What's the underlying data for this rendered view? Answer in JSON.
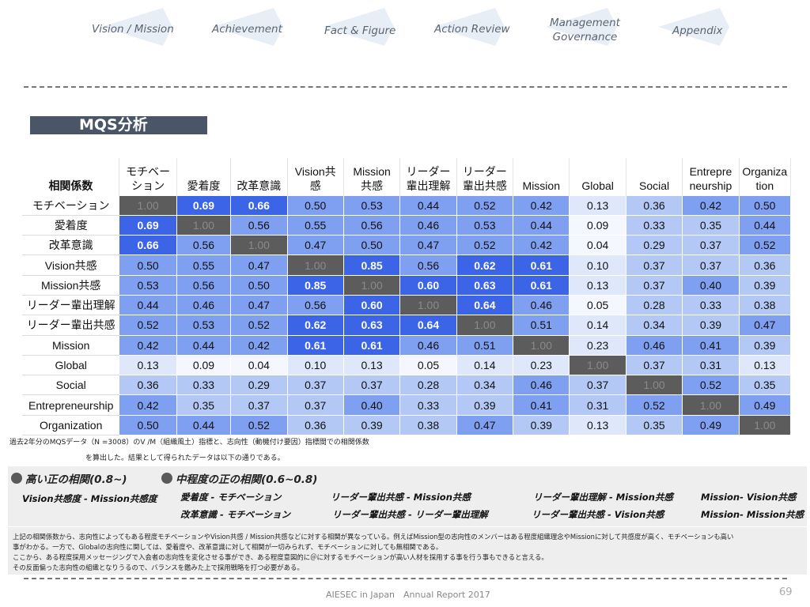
{
  "nav": {
    "items": [
      {
        "label": "Vision / Mission"
      },
      {
        "label": "Achievement"
      },
      {
        "label": "Fact & Figure"
      },
      {
        "label": "Action Review"
      },
      {
        "label": "Management\nGovernance"
      },
      {
        "label": "Appendix"
      }
    ],
    "arrow_color": "#e8eef6"
  },
  "title": "MQS分析",
  "matrix": {
    "corner": "相関係数",
    "columns": [
      "モチベー\nション",
      "愛着度",
      "改革意識",
      "Vision共\n感",
      "Mission\n共感",
      "リーダー\n輩出理解",
      "リーダー\n輩出共感",
      "Mission",
      "Global",
      "Social",
      "Entrepre\nneurship",
      "Organiza\ntion"
    ],
    "rows": [
      {
        "label": "モチベーション",
        "values": [
          "1.00",
          "0.69",
          "0.66",
          "0.50",
          "0.53",
          "0.44",
          "0.52",
          "0.42",
          "0.13",
          "0.36",
          "0.42",
          "0.50"
        ]
      },
      {
        "label": "愛着度",
        "values": [
          "0.69",
          "1.00",
          "0.56",
          "0.55",
          "0.56",
          "0.46",
          "0.53",
          "0.44",
          "0.09",
          "0.33",
          "0.35",
          "0.44"
        ]
      },
      {
        "label": "改革意識",
        "values": [
          "0.66",
          "0.56",
          "1.00",
          "0.47",
          "0.50",
          "0.47",
          "0.52",
          "0.42",
          "0.04",
          "0.29",
          "0.37",
          "0.52"
        ]
      },
      {
        "label": "Vision共感",
        "values": [
          "0.50",
          "0.55",
          "0.47",
          "1.00",
          "0.85",
          "0.56",
          "0.62",
          "0.61",
          "0.10",
          "0.37",
          "0.37",
          "0.36"
        ]
      },
      {
        "label": "Mission共感",
        "values": [
          "0.53",
          "0.56",
          "0.50",
          "0.85",
          "1.00",
          "0.60",
          "0.63",
          "0.61",
          "0.13",
          "0.37",
          "0.40",
          "0.39"
        ]
      },
      {
        "label": "リーダー輩出理解",
        "values": [
          "0.44",
          "0.46",
          "0.47",
          "0.56",
          "0.60",
          "1.00",
          "0.64",
          "0.46",
          "0.05",
          "0.28",
          "0.33",
          "0.38"
        ]
      },
      {
        "label": "リーダー輩出共感",
        "values": [
          "0.52",
          "0.53",
          "0.52",
          "0.62",
          "0.63",
          "0.64",
          "1.00",
          "0.51",
          "0.14",
          "0.34",
          "0.39",
          "0.47"
        ]
      },
      {
        "label": "Mission",
        "values": [
          "0.42",
          "0.44",
          "0.42",
          "0.61",
          "0.61",
          "0.46",
          "0.51",
          "1.00",
          "0.23",
          "0.46",
          "0.41",
          "0.39"
        ]
      },
      {
        "label": "Global",
        "values": [
          "0.13",
          "0.09",
          "0.04",
          "0.10",
          "0.13",
          "0.05",
          "0.14",
          "0.23",
          "1.00",
          "0.37",
          "0.31",
          "0.13"
        ]
      },
      {
        "label": "Social",
        "values": [
          "0.36",
          "0.33",
          "0.29",
          "0.37",
          "0.37",
          "0.28",
          "0.34",
          "0.46",
          "0.37",
          "1.00",
          "0.52",
          "0.35"
        ]
      },
      {
        "label": "Entrepreneurship",
        "values": [
          "0.42",
          "0.35",
          "0.37",
          "0.37",
          "0.40",
          "0.33",
          "0.39",
          "0.41",
          "0.31",
          "0.52",
          "1.00",
          "0.49"
        ]
      },
      {
        "label": "Organization",
        "values": [
          "0.50",
          "0.44",
          "0.52",
          "0.36",
          "0.39",
          "0.38",
          "0.47",
          "0.39",
          "0.13",
          "0.35",
          "0.49",
          "1.00"
        ]
      }
    ],
    "colors": {
      "diag": "#5c5c5c",
      "high": "#3c64e6",
      "medium": "#7f9ff0",
      "low": "#b3c8f5",
      "very_low": "#dfe8fb"
    }
  },
  "notes": {
    "line1": "過去2年分のMQSデータ（N =3008）のV /M（組織風土）指標と、志向性（動機付け要因）指標間での相関係数",
    "line2": "を算出した。結果として得られたデータは以下の通りである。"
  },
  "legend": {
    "high_title": "高い正の相関(0.8~)",
    "mid_title": "中程度の正の相関(0.6~0.8)",
    "high_pairs": [
      "Vision共感度 - Mission共感度"
    ],
    "mid_pairs": [
      "愛着度 - モチベーション",
      "改革意識 - モチベーション",
      "リーダー輩出共感 - Mission共感",
      "リーダー輩出共感 - リーダー輩出理解",
      "リーダー輩出理解 - Mission共感",
      "リーダー輩出共感 - Vision共感",
      "Mission- Vision共感",
      "Mission- Mission共感"
    ]
  },
  "explanation": [
    "上記の相関係数から、志向性によってもある程度モチベーションやVision共感 / Mission共感などに対する相関が異なっている。例えばMission型の志向性のメンバーはある程度組織理念やMissionに対して共感度が高く、モチベーションも高い",
    "事がわかる。一方で、Globalの志向性に関しては、愛着度や、改革意識に対して相関が一切みられず、モチベーションに対しても無相関である。",
    "ここから、ある程度採用メッセージングで入会者の志向性を変化させる事ができ、ある程度意図的に＠に対するモチベーションが高い人材を採用する事を行う事もできると言える。",
    "その反面偏った志向性の組織となりうるので、バランスを鑑みた上で採用戦略を打つ必要がある。"
  ],
  "footer": "AIESEC in Japan　Annual Report 2017",
  "page_number": "69"
}
